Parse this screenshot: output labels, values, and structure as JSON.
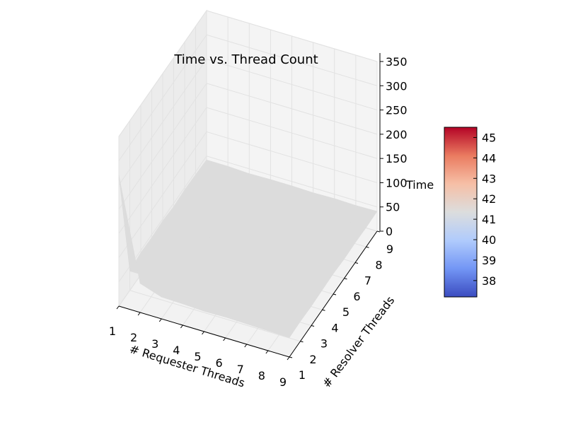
{
  "chart_data": {
    "type": "surface",
    "title": "Time vs. Thread Count",
    "xlabel": "# Requester Threads",
    "ylabel": "# Resolver Threads",
    "zlabel": "Time",
    "x": [
      1,
      2,
      3,
      4,
      5,
      6,
      7,
      8,
      9
    ],
    "y": [
      1,
      2,
      3,
      4,
      5,
      6,
      7,
      8,
      9
    ],
    "x_ticks": [
      "1",
      "2",
      "3",
      "4",
      "5",
      "6",
      "7",
      "8",
      "9"
    ],
    "y_ticks": [
      "1",
      "2",
      "3",
      "4",
      "5",
      "6",
      "7",
      "8",
      "9"
    ],
    "z_ticks": [
      "0",
      "50",
      "100",
      "150",
      "200",
      "250",
      "300",
      "350"
    ],
    "zlim": [
      0,
      350
    ],
    "surface_color": "#dcdcdc",
    "z_grid": [
      [
        270,
        40,
        45,
        44,
        46,
        43,
        45,
        44,
        42
      ],
      [
        60,
        40,
        42,
        41,
        43,
        42,
        41,
        40,
        42
      ],
      [
        45,
        41,
        40,
        42,
        41,
        40,
        42,
        41,
        40
      ],
      [
        44,
        40,
        41,
        40,
        42,
        41,
        40,
        42,
        41
      ],
      [
        42,
        41,
        40,
        41,
        40,
        42,
        41,
        40,
        41
      ],
      [
        43,
        40,
        42,
        40,
        41,
        40,
        41,
        42,
        40
      ],
      [
        42,
        41,
        40,
        42,
        41,
        40,
        42,
        40,
        41
      ],
      [
        41,
        40,
        42,
        41,
        40,
        41,
        40,
        41,
        40
      ],
      [
        40,
        41,
        40,
        41,
        42,
        40,
        41,
        40,
        41
      ]
    ],
    "colorbar": {
      "ticks": [
        "38",
        "39",
        "40",
        "41",
        "42",
        "43",
        "44",
        "45"
      ],
      "range": [
        37.2,
        45.5
      ],
      "colormap": "coolwarm",
      "colors": [
        "#3b4cc0",
        "#7396f5",
        "#b0cbfc",
        "#dcdddd",
        "#f6bfa6",
        "#ea7b60",
        "#b40426"
      ]
    }
  }
}
